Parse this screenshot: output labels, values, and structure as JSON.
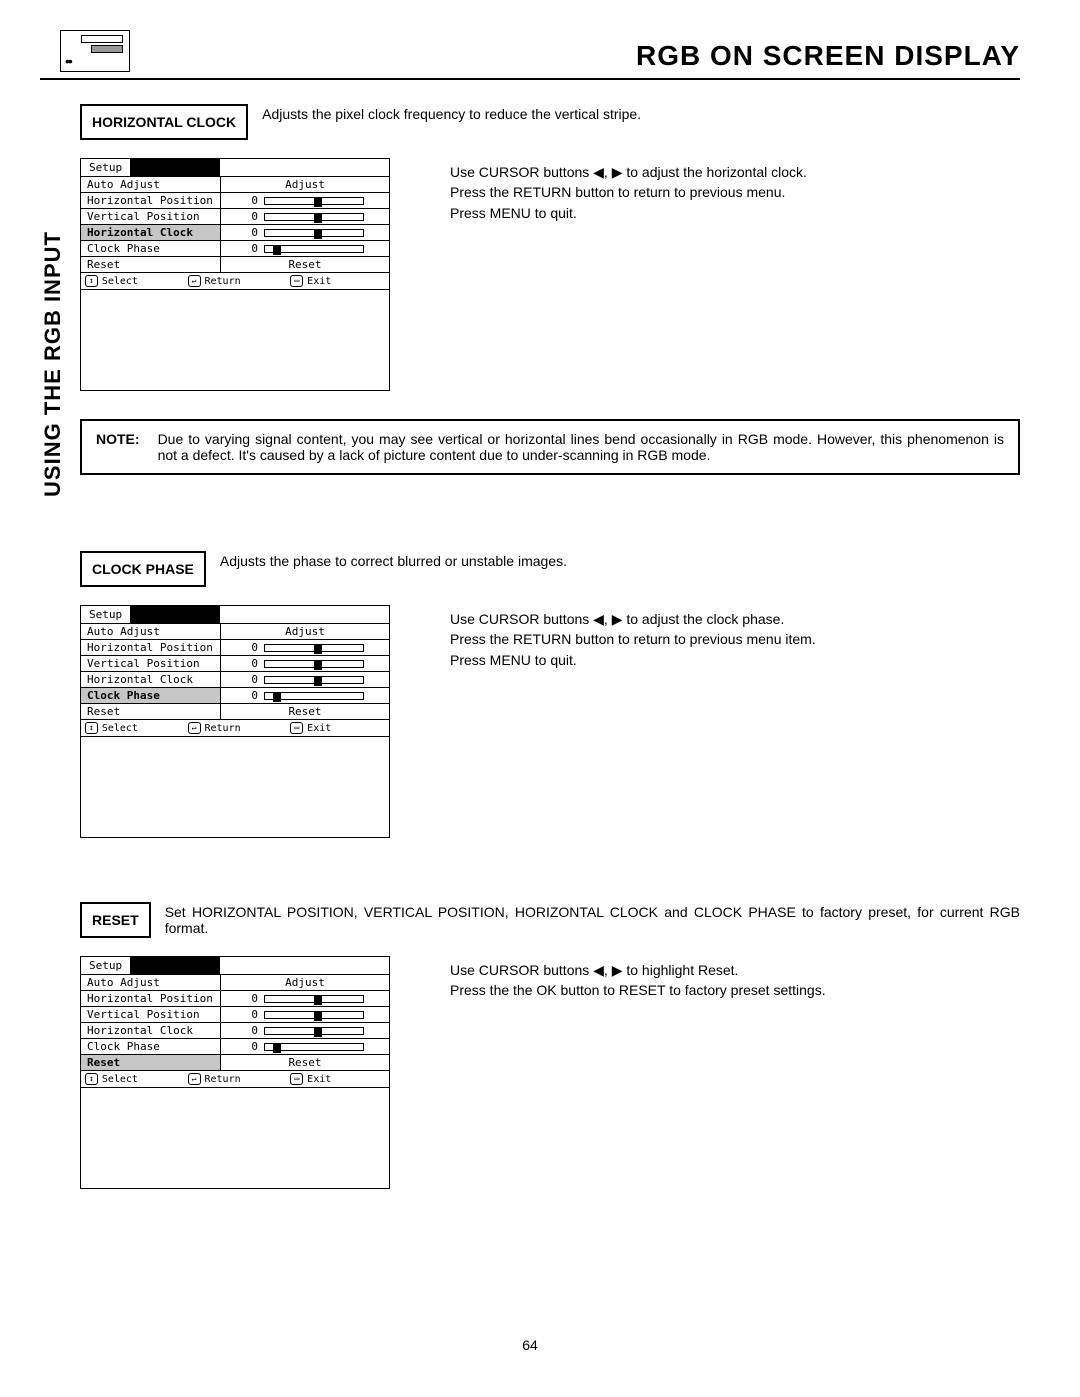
{
  "page_title": "RGB ON SCREEN DISPLAY",
  "side_label": "USING THE RGB INPUT",
  "page_number": "64",
  "sections": [
    {
      "label": "HORIZONTAL CLOCK",
      "desc": "Adjusts the pixel clock frequency to reduce the vertical stripe.",
      "instructions": "Use CURSOR buttons ◀, ▶ to adjust the horizontal clock.\nPress the RETURN button to return to previous menu.\nPress MENU to quit.",
      "osd_highlight": "Horizontal Clock"
    },
    {
      "label": "CLOCK PHASE",
      "desc": "Adjusts the phase to correct blurred or unstable images.",
      "instructions": "Use CURSOR buttons ◀, ▶ to adjust the clock phase.\nPress the RETURN button to return to previous menu item.\nPress MENU to quit.",
      "osd_highlight": "Clock Phase"
    },
    {
      "label": "RESET",
      "desc": "Set HORIZONTAL POSITION, VERTICAL POSITION, HORIZONTAL CLOCK  and CLOCK PHASE to factory preset, for current RGB format.",
      "instructions": "Use CURSOR buttons ◀, ▶ to highlight Reset.\nPress the the OK button to RESET to factory preset settings.",
      "osd_highlight": "Reset",
      "desc_justify": true
    }
  ],
  "note": {
    "label": "NOTE:",
    "body": "Due to varying signal content, you may see vertical or horizontal lines bend occasionally in RGB mode.  However, this phenomenon is not a defect.  It's caused by a lack of picture content due to under-scanning in RGB mode."
  },
  "osd": {
    "tab": "Setup",
    "rows": [
      {
        "label": "Auto Adjust",
        "value_text": "Adjust"
      },
      {
        "label": "Horizontal Position",
        "num": "0",
        "knob": 50
      },
      {
        "label": "Vertical Position",
        "num": "0",
        "knob": 50
      },
      {
        "label": "Horizontal Clock",
        "num": "0",
        "knob": 50
      },
      {
        "label": "Clock Phase",
        "num": "0",
        "knob": 8
      },
      {
        "label": "Reset",
        "value_text": "Reset"
      }
    ],
    "foot": {
      "select_icon": "↕",
      "select": "Select",
      "return_icon": "↵",
      "return": "Return",
      "exit_icon": "▭",
      "exit": "Exit"
    }
  }
}
